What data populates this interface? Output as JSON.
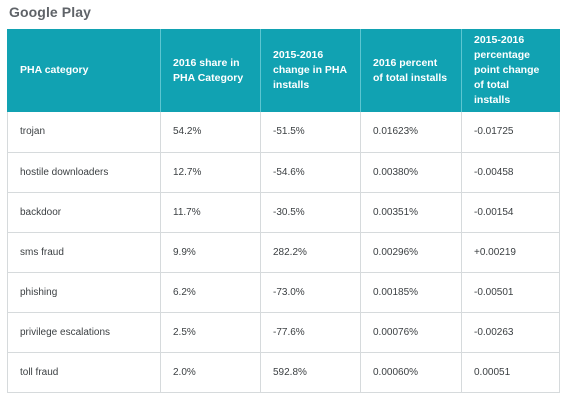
{
  "title": "Google Play",
  "colors": {
    "header_bg": "#11a2b2",
    "header_text": "#ffffff",
    "cell_text": "#3c4043",
    "title_text": "#5f6368",
    "grid": "#d6dadc"
  },
  "table": {
    "headers": [
      "PHA category",
      "2016 share in PHA Category",
      "2015-2016 change in PHA installs",
      "2016 percent of total installs",
      "2015-2016 percentage point change of total installs"
    ],
    "rows": [
      [
        "trojan",
        "54.2%",
        "-51.5%",
        "0.01623%",
        "-0.01725"
      ],
      [
        "hostile downloaders",
        "12.7%",
        "-54.6%",
        "0.00380%",
        "-0.00458"
      ],
      [
        "backdoor",
        "11.7%",
        "-30.5%",
        "0.00351%",
        "-0.00154"
      ],
      [
        "sms fraud",
        "9.9%",
        "282.2%",
        "0.00296%",
        "+0.00219"
      ],
      [
        "phishing",
        "6.2%",
        "-73.0%",
        "0.00185%",
        "-0.00501"
      ],
      [
        "privilege escalations",
        "2.5%",
        "-77.6%",
        "0.00076%",
        "-0.00263"
      ],
      [
        "toll fraud",
        "2.0%",
        "592.8%",
        "0.00060%",
        "0.00051"
      ]
    ]
  }
}
